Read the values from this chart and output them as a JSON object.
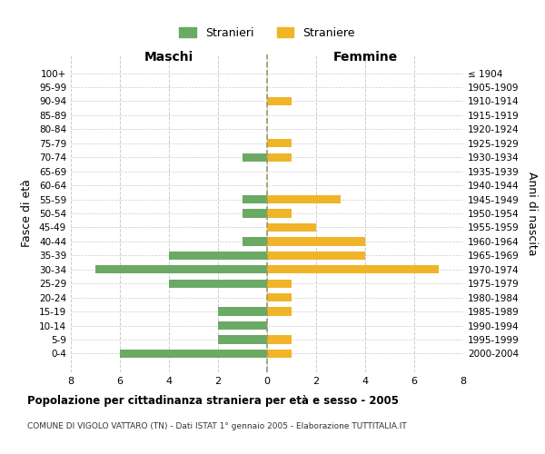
{
  "age_groups": [
    "100+",
    "95-99",
    "90-94",
    "85-89",
    "80-84",
    "75-79",
    "70-74",
    "65-69",
    "60-64",
    "55-59",
    "50-54",
    "45-49",
    "40-44",
    "35-39",
    "30-34",
    "25-29",
    "20-24",
    "15-19",
    "10-14",
    "5-9",
    "0-4"
  ],
  "birth_years": [
    "≤ 1904",
    "1905-1909",
    "1910-1914",
    "1915-1919",
    "1920-1924",
    "1925-1929",
    "1930-1934",
    "1935-1939",
    "1940-1944",
    "1945-1949",
    "1950-1954",
    "1955-1959",
    "1960-1964",
    "1965-1969",
    "1970-1974",
    "1975-1979",
    "1980-1984",
    "1985-1989",
    "1990-1994",
    "1995-1999",
    "2000-2004"
  ],
  "maschi": [
    0,
    0,
    0,
    0,
    0,
    0,
    1,
    0,
    0,
    1,
    1,
    0,
    1,
    4,
    7,
    4,
    0,
    2,
    2,
    2,
    6
  ],
  "femmine": [
    0,
    0,
    1,
    0,
    0,
    1,
    1,
    0,
    0,
    3,
    1,
    2,
    4,
    4,
    7,
    1,
    1,
    1,
    0,
    1,
    1
  ],
  "male_color": "#6aaa64",
  "female_color": "#f0b429",
  "background_color": "#ffffff",
  "grid_color": "#cccccc",
  "center_line_color": "#999966",
  "xlim": 8,
  "title": "Popolazione per cittadinanza straniera per età e sesso - 2005",
  "subtitle": "COMUNE DI VIGOLO VATTARO (TN) - Dati ISTAT 1° gennaio 2005 - Elaborazione TUTTITALIA.IT",
  "ylabel_left": "Fasce di età",
  "ylabel_right": "Anni di nascita",
  "xlabel_maschi": "Maschi",
  "xlabel_femmine": "Femmine",
  "legend_maschi": "Stranieri",
  "legend_femmine": "Straniere"
}
